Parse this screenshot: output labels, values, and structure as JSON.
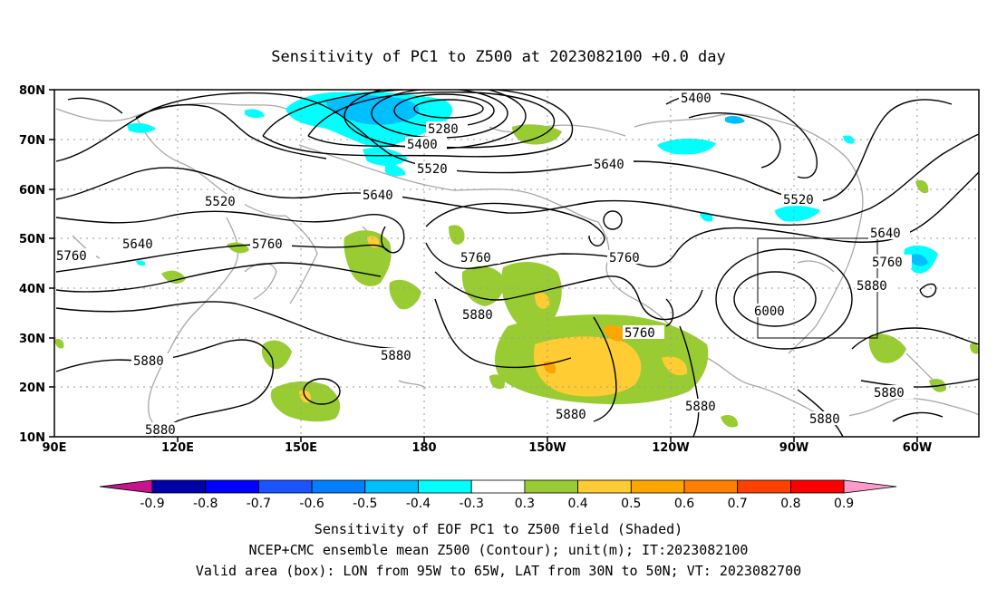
{
  "title": "Sensitivity of PC1 to Z500 at 2023082100 +0.0 day",
  "map": {
    "lon_ticks": [
      "90E",
      "120E",
      "150E",
      "180",
      "150W",
      "120W",
      "90W",
      "60W"
    ],
    "lat_ticks": [
      "80N",
      "70N",
      "60N",
      "50N",
      "40N",
      "30N",
      "20N",
      "10N"
    ],
    "gridlines": true,
    "valid_box": {
      "lon": [
        "95W",
        "65W"
      ],
      "lat": [
        "30N",
        "50N"
      ]
    }
  },
  "contour_labels": [
    {
      "id": "c5280",
      "text": "5280"
    },
    {
      "id": "c5400a",
      "text": "5400"
    },
    {
      "id": "c5400b",
      "text": "5400"
    },
    {
      "id": "c5520a",
      "text": "5520"
    },
    {
      "id": "c5520b",
      "text": "5520"
    },
    {
      "id": "c5520c",
      "text": "5520"
    },
    {
      "id": "c5640a",
      "text": "5640"
    },
    {
      "id": "c5640b",
      "text": "5640"
    },
    {
      "id": "c5640c",
      "text": "5640"
    },
    {
      "id": "c5640d",
      "text": "5640"
    },
    {
      "id": "c5760a",
      "text": "5760"
    },
    {
      "id": "c5760b",
      "text": "5760"
    },
    {
      "id": "c5760c",
      "text": "5760"
    },
    {
      "id": "c5760d",
      "text": "5760"
    },
    {
      "id": "c5760e",
      "text": "5760"
    },
    {
      "id": "c5760f",
      "text": "5760"
    },
    {
      "id": "c5880a",
      "text": "5880"
    },
    {
      "id": "c5880b",
      "text": "5880"
    },
    {
      "id": "c5880c",
      "text": "5880"
    },
    {
      "id": "c5880d",
      "text": "5880"
    },
    {
      "id": "c5880e",
      "text": "5880"
    },
    {
      "id": "c5880f",
      "text": "5880"
    },
    {
      "id": "c5880g",
      "text": "5880"
    },
    {
      "id": "c5880h",
      "text": "5880"
    },
    {
      "id": "c5880i",
      "text": "5880"
    },
    {
      "id": "c6000",
      "text": "6000"
    }
  ],
  "colorbar": {
    "labels": [
      "-0.9",
      "-0.8",
      "-0.7",
      "-0.6",
      "-0.5",
      "-0.4",
      "-0.3",
      "0.3",
      "0.4",
      "0.5",
      "0.6",
      "0.7",
      "0.8",
      "0.9"
    ],
    "colors": [
      "#0000a8",
      "#0000ff",
      "#1a53ff",
      "#0080ff",
      "#00bfff",
      "#00ffff",
      "#ffffff",
      "#99cc33",
      "#ffcc33",
      "#ffa500",
      "#ff7f00",
      "#ff4000",
      "#ff0000"
    ],
    "low_end_color": "#c8148c",
    "high_end_color": "#ff99cc"
  },
  "captions": [
    "Sensitivity of EOF PC1 to Z500 field (Shaded)",
    "NCEP+CMC ensemble mean Z500 (Contour); unit(m); IT:2023082100",
    "Valid area (box): LON from 95W to 65W, LAT from 30N to 50N; VT: 2023082700"
  ]
}
